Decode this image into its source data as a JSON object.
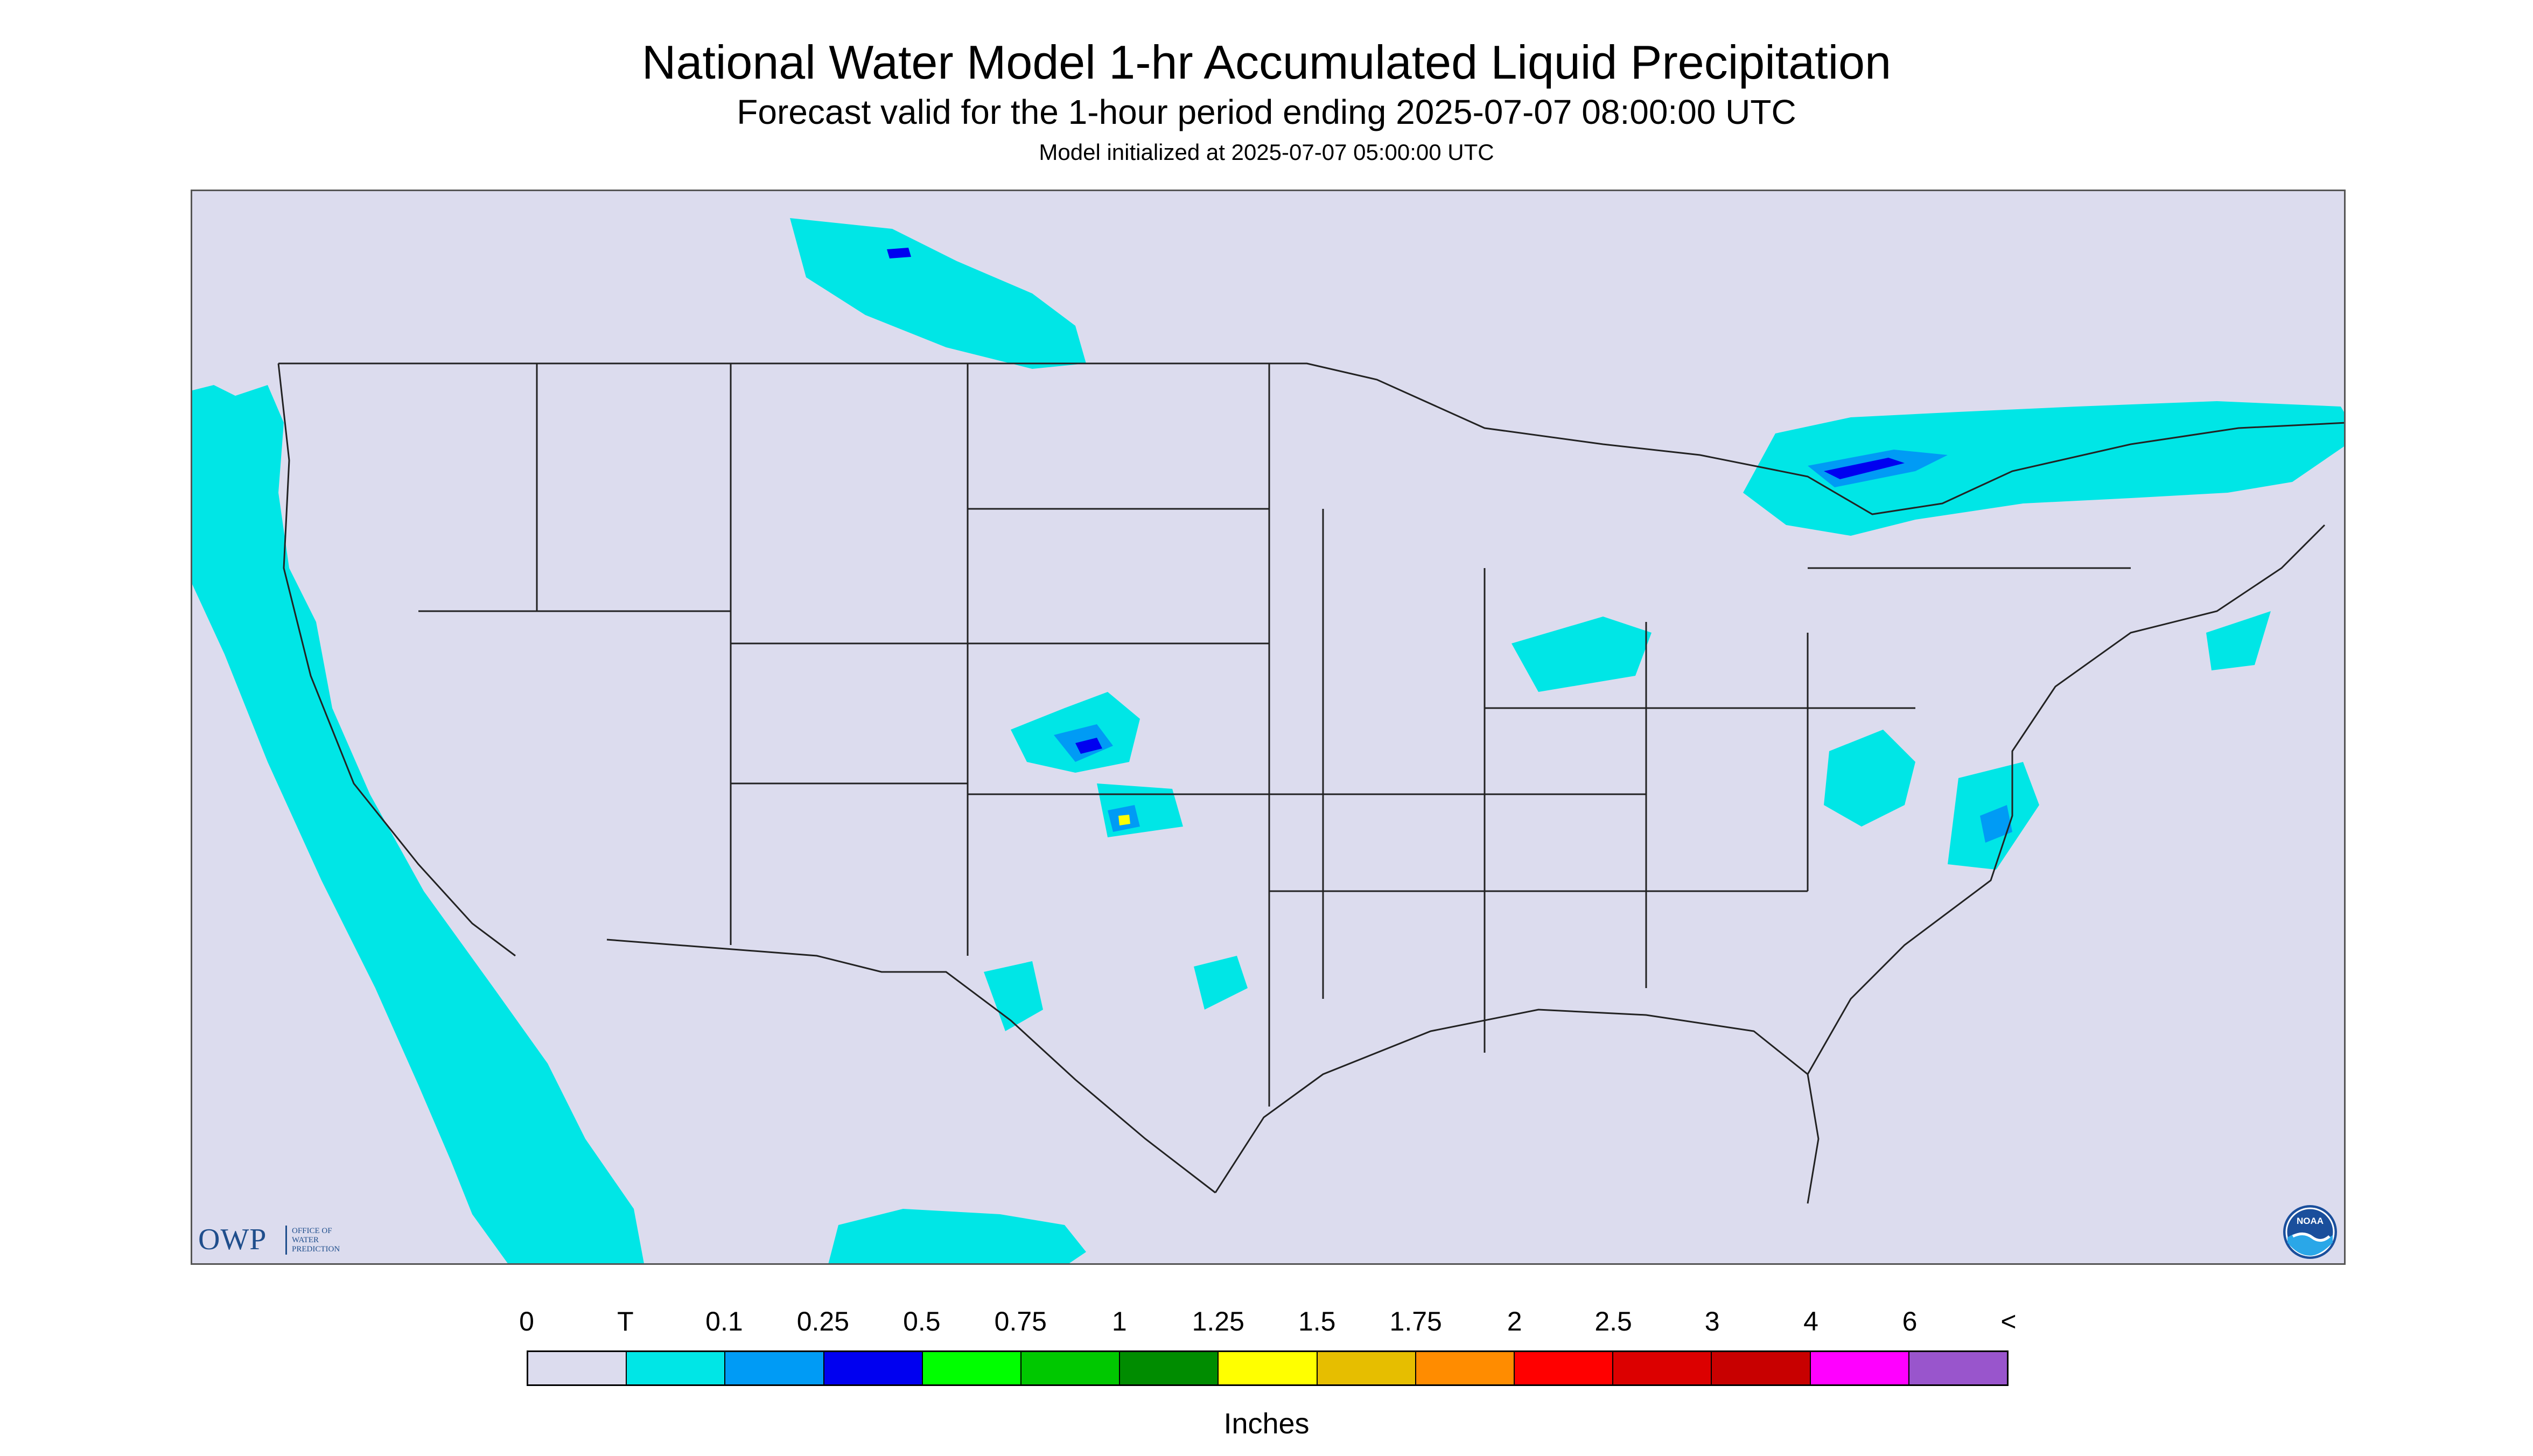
{
  "title": "National Water Model 1-hr Accumulated Liquid Precipitation",
  "subtitle": "Forecast valid for the 1-hour period ending 2025-07-07 08:00:00 UTC",
  "init_line": "Model initialized at 2025-07-07 05:00:00 UTC",
  "map": {
    "land_color": "#dcdcee",
    "offdomain_color": "#ffffff",
    "boundary_color": "#222222"
  },
  "legend": {
    "labels": [
      "0",
      "T",
      "0.1",
      "0.25",
      "0.5",
      "0.75",
      "1",
      "1.25",
      "1.5",
      "1.75",
      "2",
      "2.5",
      "3",
      "4",
      "6",
      "<"
    ],
    "colors": [
      "#dcdcee",
      "#00e6e6",
      "#009bf5",
      "#0000f0",
      "#00ff00",
      "#00c800",
      "#008c00",
      "#ffff00",
      "#e6be00",
      "#ff8c00",
      "#ff0000",
      "#dc0000",
      "#c80000",
      "#ff00ff",
      "#9955cc"
    ],
    "units": "Inches"
  },
  "logos": {
    "owp_letters": "OWP",
    "owp_line1": "OFFICE OF",
    "owp_line2": "WATER",
    "owp_line3": "PREDICTION",
    "noaa_text": "NOAA"
  }
}
